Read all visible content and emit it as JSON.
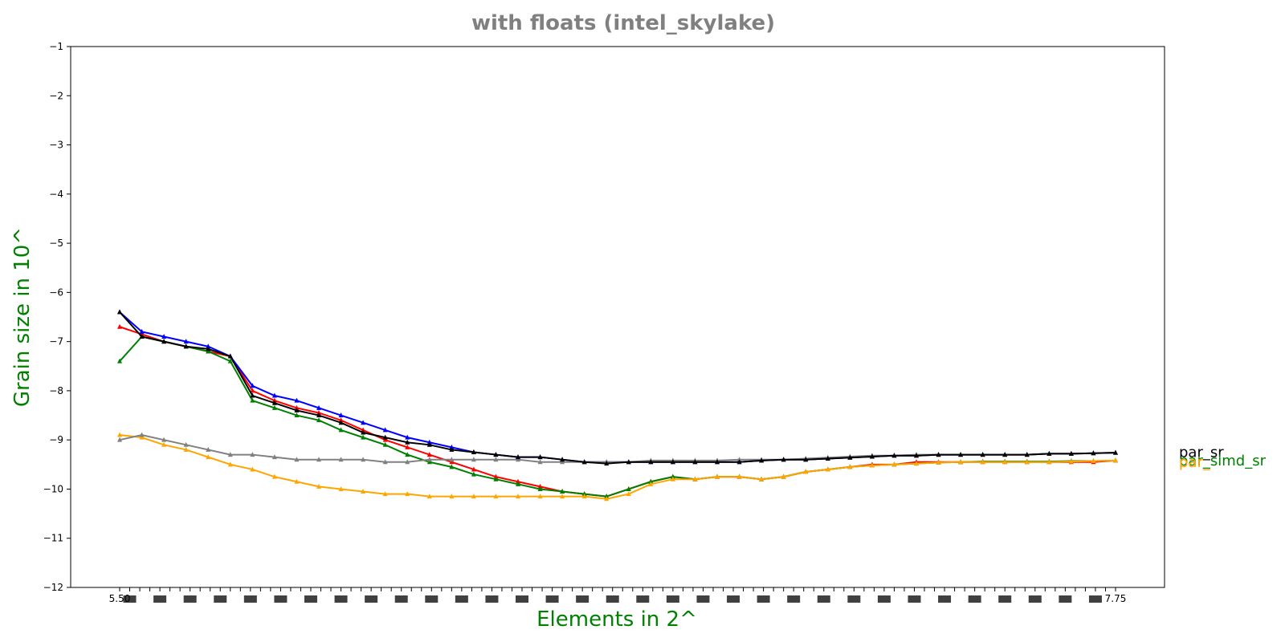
{
  "chart_data": {
    "type": "line",
    "title": "with floats  (intel_skylake)",
    "xlabel": "Elements in 2^",
    "ylabel": "Grain size in 10^",
    "ylim": [
      -12,
      -1
    ],
    "yticks": [
      -1,
      -2,
      -3,
      -4,
      -5,
      -6,
      -7,
      -8,
      -9,
      -10,
      -11,
      -12
    ],
    "ytick_labels": [
      "−1",
      "−2",
      "−3",
      "−4",
      "−5",
      "−6",
      "−7",
      "−8",
      "−9",
      "−10",
      "−11",
      "−12"
    ],
    "x_first_tick": "5.50",
    "x_last_tick": "7.75",
    "x_tick_count": 100,
    "x": [
      5.5,
      5.55,
      5.6,
      5.65,
      5.7,
      5.75,
      5.8,
      5.85,
      5.9,
      5.95,
      6.0,
      6.05,
      6.1,
      6.15,
      6.2,
      6.25,
      6.3,
      6.35,
      6.4,
      6.45,
      6.5,
      6.55,
      6.6,
      6.65,
      6.7,
      6.75,
      6.8,
      6.85,
      6.9,
      6.95,
      7.0,
      7.05,
      7.1,
      7.15,
      7.2,
      7.25,
      7.3,
      7.35,
      7.4,
      7.45,
      7.5,
      7.55,
      7.6,
      7.65,
      7.7,
      7.75
    ],
    "grid": false,
    "legend": "end-of-line labels",
    "series": [
      {
        "name": "",
        "color": "#ff0000",
        "values": [
          -6.7,
          -6.85,
          -7.0,
          -7.1,
          -7.2,
          -7.3,
          -8.0,
          -8.2,
          -8.35,
          -8.45,
          -8.6,
          -8.8,
          -9.0,
          -9.15,
          -9.3,
          -9.45,
          -9.6,
          -9.75,
          -9.85,
          -9.95,
          -10.05,
          -10.1,
          -10.15,
          -10.0,
          -9.85,
          -9.75,
          -9.8,
          -9.75,
          -9.75,
          -9.8,
          -9.75,
          -9.65,
          -9.6,
          -9.55,
          -9.5,
          -9.5,
          -9.45,
          -9.45,
          -9.45,
          -9.45,
          -9.45,
          -9.45,
          -9.45,
          -9.45,
          -9.45,
          -9.42
        ]
      },
      {
        "name": "",
        "color": "#0000ff",
        "values": [
          -6.4,
          -6.8,
          -6.9,
          -7.0,
          -7.1,
          -7.3,
          -7.9,
          -8.1,
          -8.2,
          -8.35,
          -8.5,
          -8.65,
          -8.8,
          -8.95,
          -9.05,
          -9.15,
          -9.25,
          -9.3,
          -9.35,
          -9.35,
          -9.4,
          -9.45,
          -9.45,
          -9.45,
          -9.45,
          -9.45,
          -9.45,
          -9.45,
          -9.45,
          -9.42,
          -9.4,
          -9.4,
          -9.38,
          -9.36,
          -9.34,
          -9.32,
          -9.32,
          -9.3,
          -9.3,
          -9.3,
          -9.3,
          -9.3,
          -9.28,
          -9.28,
          -9.27,
          -9.26
        ]
      },
      {
        "name": "",
        "color": "#008000",
        "values": [
          -7.4,
          -6.9,
          -7.0,
          -7.1,
          -7.2,
          -7.4,
          -8.2,
          -8.35,
          -8.5,
          -8.6,
          -8.8,
          -8.95,
          -9.1,
          -9.3,
          -9.45,
          -9.55,
          -9.7,
          -9.8,
          -9.9,
          -10.0,
          -10.05,
          -10.1,
          -10.15,
          -10.0,
          -9.85,
          -9.75,
          -9.8,
          -9.75,
          -9.75,
          -9.8,
          -9.75,
          -9.65,
          -9.6,
          -9.55,
          -9.52,
          -9.5,
          -9.48,
          -9.46,
          -9.45,
          -9.44,
          -9.44,
          -9.44,
          -9.44,
          -9.43,
          -9.43,
          -9.42
        ]
      },
      {
        "name": "",
        "color": "#ffa500",
        "values": [
          -8.9,
          -8.95,
          -9.1,
          -9.2,
          -9.35,
          -9.5,
          -9.6,
          -9.75,
          -9.85,
          -9.95,
          -10.0,
          -10.05,
          -10.1,
          -10.1,
          -10.15,
          -10.15,
          -10.15,
          -10.15,
          -10.15,
          -10.15,
          -10.15,
          -10.15,
          -10.2,
          -10.1,
          -9.9,
          -9.8,
          -9.8,
          -9.75,
          -9.75,
          -9.8,
          -9.75,
          -9.65,
          -9.6,
          -9.55,
          -9.52,
          -9.5,
          -9.48,
          -9.46,
          -9.45,
          -9.45,
          -9.45,
          -9.45,
          -9.45,
          -9.44,
          -9.43,
          -9.42
        ]
      },
      {
        "name": "",
        "color": "#808080",
        "values": [
          -9.0,
          -8.9,
          -9.0,
          -9.1,
          -9.2,
          -9.3,
          -9.3,
          -9.35,
          -9.4,
          -9.4,
          -9.4,
          -9.4,
          -9.45,
          -9.45,
          -9.4,
          -9.4,
          -9.4,
          -9.4,
          -9.4,
          -9.45,
          -9.45,
          -9.45,
          -9.45,
          -9.45,
          -9.42,
          -9.42,
          -9.42,
          -9.42,
          -9.4,
          -9.4,
          -9.4,
          -9.38,
          -9.36,
          -9.34,
          -9.32,
          -9.32,
          -9.3,
          -9.3,
          -9.3,
          -9.3,
          -9.3,
          -9.3,
          -9.28,
          -9.28,
          -9.27,
          -9.26
        ]
      },
      {
        "name": "par_sr",
        "color": "#000000",
        "values": [
          -6.4,
          -6.9,
          -7.0,
          -7.1,
          -7.15,
          -7.3,
          -8.1,
          -8.25,
          -8.4,
          -8.5,
          -8.65,
          -8.85,
          -8.95,
          -9.05,
          -9.1,
          -9.2,
          -9.25,
          -9.3,
          -9.35,
          -9.35,
          -9.4,
          -9.45,
          -9.48,
          -9.45,
          -9.45,
          -9.45,
          -9.45,
          -9.45,
          -9.45,
          -9.42,
          -9.4,
          -9.4,
          -9.38,
          -9.36,
          -9.34,
          -9.32,
          -9.32,
          -9.3,
          -9.3,
          -9.3,
          -9.3,
          -9.3,
          -9.28,
          -9.28,
          -9.27,
          -9.26
        ]
      }
    ],
    "end_labels": [
      {
        "text": "par_sr",
        "color": "#000000",
        "y": -9.25
      },
      {
        "text": "par_simd_sr",
        "color": "#008000",
        "y": -9.42
      },
      {
        "text": "par_",
        "color": "#ffa500",
        "y": -9.45
      }
    ]
  }
}
